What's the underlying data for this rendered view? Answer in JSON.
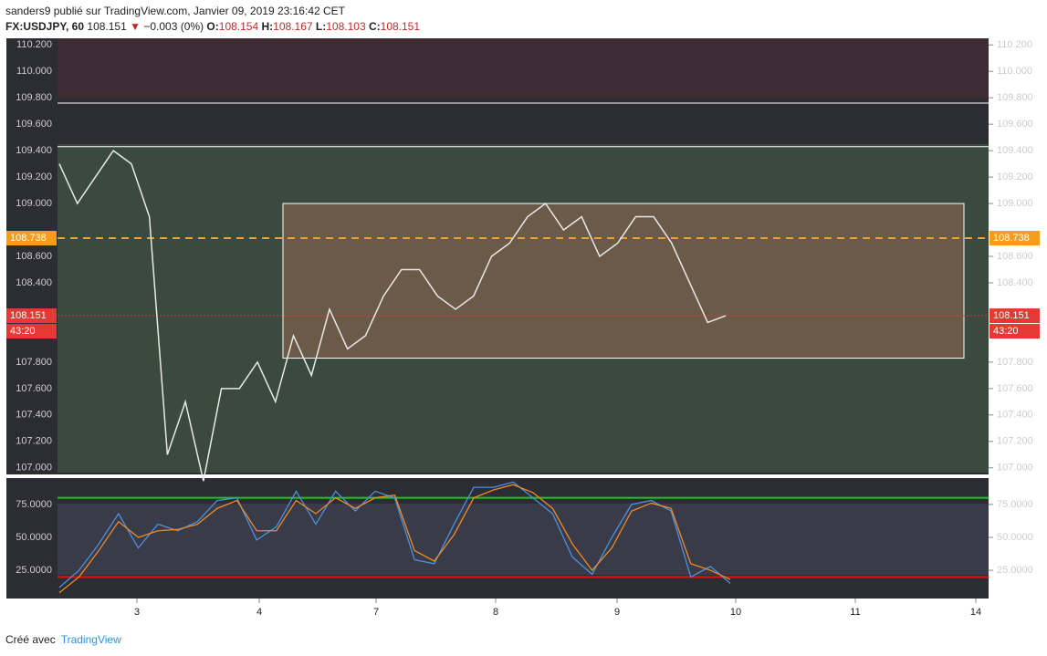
{
  "header": {
    "line1": "sanders9 publié sur TradingView.com, Janvier 09, 2019 23:16:42 CET",
    "symbol": "FX:USDJPY, 60",
    "last": "108.151",
    "arrow": "▼",
    "change": "−0.003 (0%)",
    "o_label": "O:",
    "o": "108.154",
    "h_label": "H:",
    "h": "108.167",
    "l_label": "L:",
    "l": "108.103",
    "c_label": "C:",
    "c": "108.151"
  },
  "price": {
    "ylim": [
      106.95,
      110.25
    ],
    "yticks": [
      {
        "value": 107.0,
        "label": "107.000"
      },
      {
        "value": 107.2,
        "label": "107.200"
      },
      {
        "value": 107.4,
        "label": "107.400"
      },
      {
        "value": 107.6,
        "label": "107.600"
      },
      {
        "value": 107.8,
        "label": "107.800"
      },
      {
        "value": 108.4,
        "label": "108.400"
      },
      {
        "value": 108.6,
        "label": "108.600"
      },
      {
        "value": 109.0,
        "label": "109.000"
      },
      {
        "value": 109.2,
        "label": "109.200"
      },
      {
        "value": 109.4,
        "label": "109.400"
      },
      {
        "value": 109.6,
        "label": "109.600"
      },
      {
        "value": 109.8,
        "label": "109.800"
      },
      {
        "value": 110.0,
        "label": "110.000"
      },
      {
        "value": 110.2,
        "label": "110.200"
      }
    ],
    "levels": [
      109.76,
      109.43
    ],
    "dashed": {
      "value": 108.738,
      "label": "108.738"
    },
    "current": {
      "value": 108.151,
      "label": "108.151",
      "countdown": "43:20"
    },
    "box": [
      109.0,
      107.83
    ],
    "close": [
      109.3,
      109.0,
      109.2,
      109.4,
      109.3,
      108.9,
      107.1,
      107.5,
      106.9,
      107.6,
      107.6,
      107.8,
      107.5,
      108.0,
      107.7,
      108.2,
      107.9,
      108.0,
      108.3,
      108.5,
      108.5,
      108.3,
      108.2,
      108.3,
      108.6,
      108.7,
      108.9,
      109.0,
      108.8,
      108.9,
      108.6,
      108.7,
      108.9,
      108.9,
      108.7,
      108.4,
      108.1,
      108.151
    ]
  },
  "oscillator": {
    "ylim": [
      3.6,
      95
    ],
    "yticks": [
      {
        "value": 25,
        "label": "25.0000"
      },
      {
        "value": 50,
        "label": "50.0000"
      },
      {
        "value": 75,
        "label": "75.0000"
      }
    ],
    "upper": 80,
    "lower": 20,
    "k": [
      12,
      25,
      45,
      68,
      42,
      60,
      55,
      62,
      78,
      80,
      48,
      58,
      85,
      60,
      85,
      70,
      85,
      80,
      33,
      30,
      60,
      88,
      88,
      92,
      80,
      68,
      35,
      22,
      50,
      75,
      78,
      70,
      20,
      28,
      15
    ],
    "d": [
      8,
      20,
      40,
      62,
      50,
      55,
      56,
      60,
      72,
      78,
      55,
      55,
      78,
      68,
      80,
      72,
      80,
      82,
      40,
      32,
      52,
      80,
      86,
      90,
      84,
      72,
      45,
      25,
      42,
      70,
      76,
      72,
      30,
      25,
      18
    ]
  },
  "time": [
    "3",
    "4",
    "7",
    "8",
    "9",
    "10",
    "11",
    "14"
  ],
  "footer": {
    "made": "Créé avec",
    "brand": "TradingView"
  }
}
